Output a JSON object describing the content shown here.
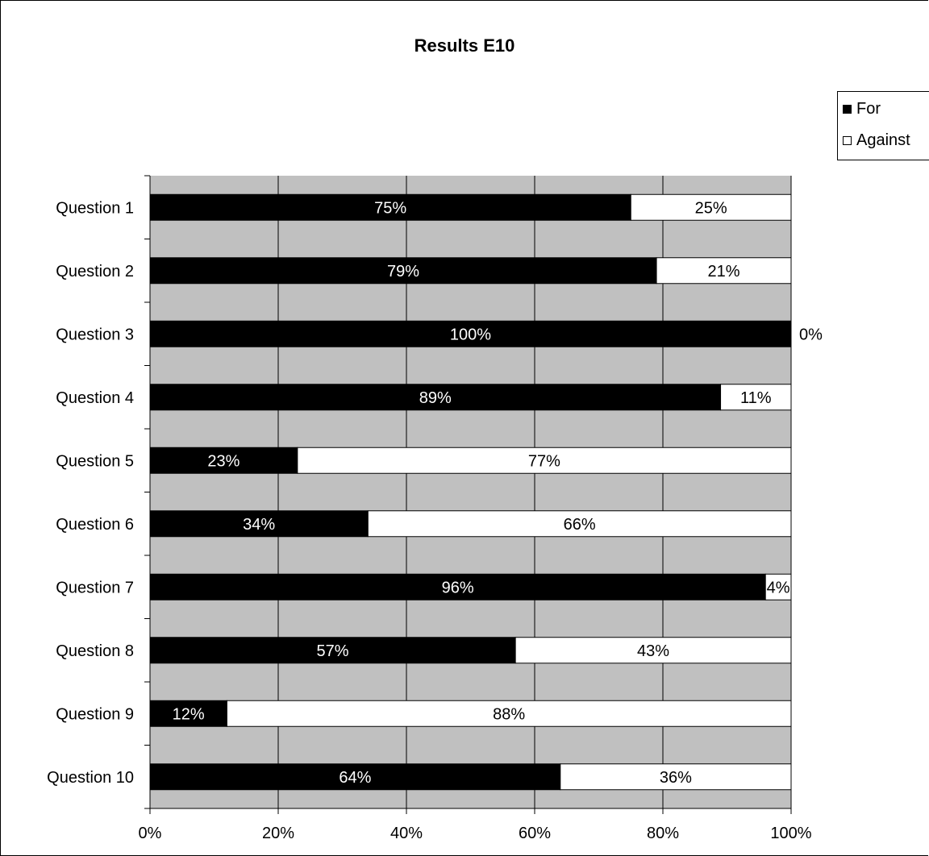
{
  "chart_data": {
    "type": "bar",
    "orientation": "horizontal",
    "stacking": "percent",
    "title": "Results E10",
    "categories": [
      "Question 1",
      "Question 2",
      "Question 3",
      "Question 4",
      "Question 5",
      "Question 6",
      "Question 7",
      "Question 8",
      "Question 9",
      "Question 10"
    ],
    "series": [
      {
        "name": "For",
        "values": [
          75,
          79,
          100,
          89,
          23,
          34,
          96,
          57,
          12,
          64
        ],
        "labels": [
          "75%",
          "79%",
          "100%",
          "89%",
          "23%",
          "34%",
          "96%",
          "57%",
          "12%",
          "64%"
        ]
      },
      {
        "name": "Against",
        "values": [
          25,
          21,
          0,
          11,
          77,
          66,
          4,
          43,
          88,
          36
        ],
        "labels": [
          "25%",
          "21%",
          "0%",
          "11%",
          "77%",
          "66%",
          "4%",
          "43%",
          "88%",
          "36%"
        ]
      }
    ],
    "xlim": [
      0,
      100
    ],
    "xticks": [
      0,
      20,
      40,
      60,
      80,
      100
    ],
    "xtick_labels": [
      "0%",
      "20%",
      "40%",
      "60%",
      "80%",
      "100%"
    ],
    "grid": true,
    "legend": "top-right",
    "colors": {
      "For": "#000000",
      "Against": "#ffffff",
      "plot_background": "#c0c0c0"
    }
  }
}
